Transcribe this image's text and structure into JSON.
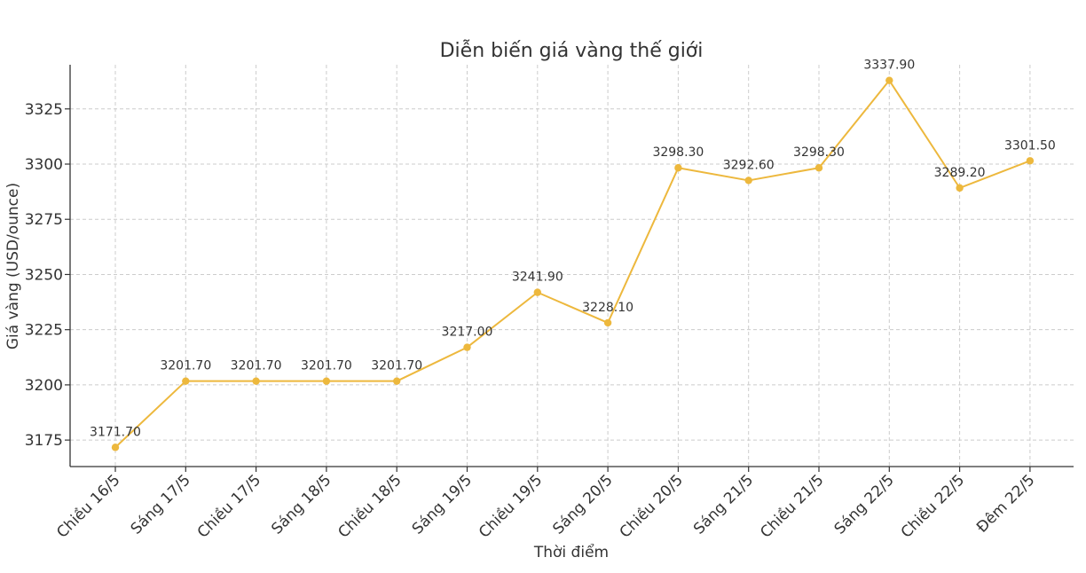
{
  "chart_data": {
    "type": "line",
    "title": "Diễn biến giá vàng thế giới",
    "xlabel": "Thời điểm",
    "ylabel": "Giá vàng (USD/ounce)",
    "categories": [
      "Chiều 16/5",
      "Sáng 17/5",
      "Chiều 17/5",
      "Sáng 18/5",
      "Chiều 18/5",
      "Sáng 19/5",
      "Chiều 19/5",
      "Sáng 20/5",
      "Chiều 20/5",
      "Sáng 21/5",
      "Chiều 21/5",
      "Sáng 22/5",
      "Chiều 22/5",
      "Đêm 22/5"
    ],
    "series": [
      {
        "values": [
          3171.7,
          3201.7,
          3201.7,
          3201.7,
          3201.7,
          3217.0,
          3241.9,
          3228.1,
          3298.3,
          3292.6,
          3298.3,
          3337.9,
          3289.2,
          3301.5
        ],
        "labels": [
          "3171.70",
          "3201.70",
          "3201.70",
          "3201.70",
          "3201.70",
          "3217.00",
          "3241.90",
          "3228.10",
          "3298.30",
          "3292.60",
          "3298.30",
          "3337.90",
          "3289.20",
          "3301.50"
        ]
      }
    ],
    "yticks": [
      3175,
      3200,
      3225,
      3250,
      3275,
      3300,
      3325
    ],
    "ylim": [
      3163,
      3345
    ],
    "grid": true,
    "legend": "none",
    "line_color": "#EDB83D"
  }
}
